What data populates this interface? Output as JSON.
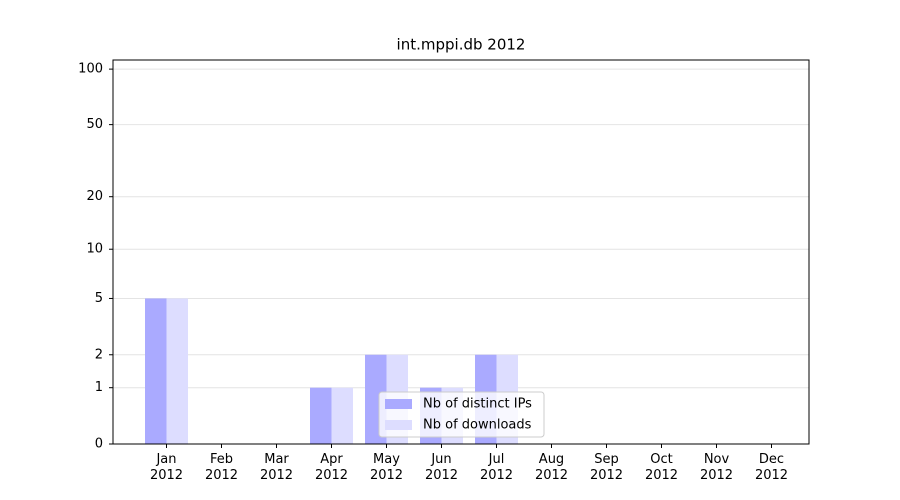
{
  "chart_data": {
    "type": "bar",
    "title": "int.mppi.db 2012",
    "categories": [
      "Jan 2012",
      "Feb 2012",
      "Mar 2012",
      "Apr 2012",
      "May 2012",
      "Jun 2012",
      "Jul 2012",
      "Aug 2012",
      "Sep 2012",
      "Oct 2012",
      "Nov 2012",
      "Dec 2012"
    ],
    "series": [
      {
        "name": "Nb of distinct IPs",
        "color": "#aaaaff",
        "values": [
          5,
          0,
          0,
          1,
          2,
          1,
          2,
          0,
          0,
          0,
          0,
          0
        ]
      },
      {
        "name": "Nb of downloads",
        "color": "#ddddff",
        "values": [
          5,
          0,
          0,
          1,
          2,
          1,
          2,
          0,
          0,
          0,
          0,
          0
        ]
      }
    ],
    "yscale": "log1p",
    "ylim": [
      0,
      112
    ],
    "yticks": [
      0,
      1,
      2,
      5,
      10,
      20,
      50,
      100
    ],
    "grid": true,
    "legend": "lower center"
  }
}
